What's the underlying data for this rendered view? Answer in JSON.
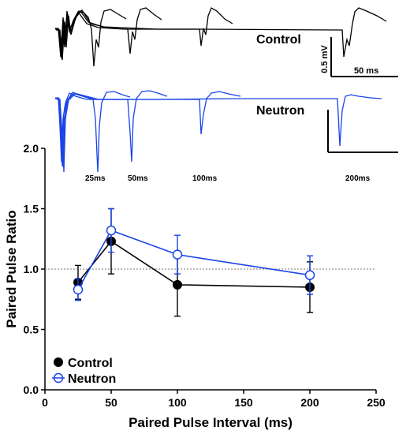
{
  "traces": {
    "control_label": "Control",
    "neutron_label": "Neutron",
    "interval_labels": [
      "25ms",
      "50ms",
      "100ms",
      "200ms"
    ],
    "scale_voltage": "0.5 mV",
    "scale_time": "50 ms",
    "control_color": "#000000",
    "neutron_color": "#1a44e6"
  },
  "chart_data": {
    "type": "line",
    "xlabel": "Paired Pulse Interval (ms)",
    "ylabel": "Paired Pulse Ratio",
    "xlim": [
      0,
      250
    ],
    "ylim": [
      0,
      2.0
    ],
    "x_ticks": [
      0,
      50,
      100,
      150,
      200,
      250
    ],
    "y_ticks": [
      "0.0",
      "0.5",
      "1.0",
      "1.5",
      "2.0"
    ],
    "reference_line": 1.0,
    "legend_position": "bottom-left",
    "x": [
      25,
      50,
      100,
      200
    ],
    "series": [
      {
        "name": "Control",
        "marker": "filled-circle",
        "color": "#000000",
        "values": [
          0.89,
          1.23,
          0.87,
          0.85
        ],
        "error": [
          0.14,
          0.27,
          0.26,
          0.21
        ]
      },
      {
        "name": "Neutron",
        "marker": "open-circle",
        "color": "#1a44e6",
        "values": [
          0.83,
          1.32,
          1.12,
          0.95
        ],
        "error": [
          0.09,
          0.18,
          0.16,
          0.16
        ]
      }
    ]
  }
}
